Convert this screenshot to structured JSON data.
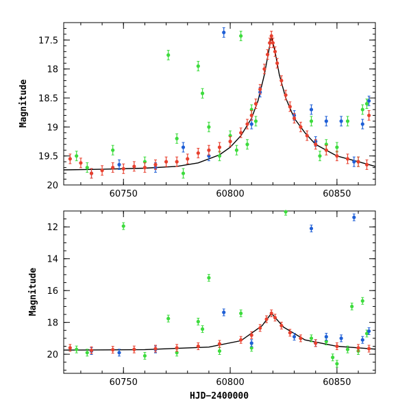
{
  "chart_data": [
    {
      "type": "scatter",
      "title": "",
      "xlabel": "",
      "ylabel": "Magnitude",
      "xlim": [
        60722,
        60868
      ],
      "ylim": [
        20.0,
        17.2
      ],
      "y_inverted": true,
      "x_major_ticks": [
        60750,
        60800,
        60850
      ],
      "x_tick_labels": [
        "60750",
        "60800",
        "60850"
      ],
      "x_minor_step": 10,
      "y_major_ticks": [
        17.5,
        18,
        18.5,
        19,
        19.5,
        20
      ],
      "y_tick_labels": [
        "17.5",
        "18",
        "18.5",
        "19",
        "19.5",
        "20"
      ],
      "y_minor_step": 0.1,
      "grid": false,
      "colors": {
        "blue": "#1f5fd6",
        "green": "#3ddb3d",
        "red": "#e8402e",
        "model": "#000000"
      },
      "model_curve": {
        "x": [
          60722,
          60740,
          60760,
          60775,
          60785,
          60795,
          60800,
          60805,
          60810,
          60813,
          60816,
          60818,
          60819.3,
          60821,
          60823,
          60826,
          60830,
          60835,
          60840,
          60850,
          60860,
          60868
        ],
        "y": [
          19.74,
          19.73,
          19.71,
          19.68,
          19.62,
          19.48,
          19.35,
          19.15,
          18.85,
          18.55,
          18.1,
          17.7,
          17.43,
          17.7,
          18.1,
          18.5,
          18.85,
          19.1,
          19.3,
          19.5,
          19.6,
          19.68
        ]
      },
      "series": [
        {
          "color": "green",
          "points": [
            [
              60728,
              19.5
            ],
            [
              60733,
              19.7
            ],
            [
              60745,
              19.4
            ],
            [
              60760,
              19.6
            ],
            [
              60771,
              17.76
            ],
            [
              60775,
              19.2
            ],
            [
              60778,
              19.8
            ],
            [
              60785,
              17.95
            ],
            [
              60787,
              18.42
            ],
            [
              60790,
              19.0
            ],
            [
              60795,
              19.5
            ],
            [
              60800,
              19.15
            ],
            [
              60803,
              19.4
            ],
            [
              60805,
              17.43
            ],
            [
              60808,
              19.3
            ],
            [
              60810,
              18.7
            ],
            [
              60812,
              18.9
            ],
            [
              60838,
              18.9
            ],
            [
              60842,
              19.5
            ],
            [
              60845,
              19.3
            ],
            [
              60850,
              19.35
            ],
            [
              60855,
              18.9
            ],
            [
              60860,
              19.6
            ],
            [
              60862,
              18.7
            ],
            [
              60864,
              18.6
            ]
          ]
        },
        {
          "color": "blue",
          "points": [
            [
              60735,
              19.8
            ],
            [
              60748,
              19.65
            ],
            [
              60765,
              19.7
            ],
            [
              60778,
              19.35
            ],
            [
              60790,
              19.5
            ],
            [
              60797,
              17.37
            ],
            [
              60810,
              18.95
            ],
            [
              60814,
              18.4
            ],
            [
              60830,
              18.8
            ],
            [
              60838,
              18.7
            ],
            [
              60840,
              19.25
            ],
            [
              60845,
              18.9
            ],
            [
              60852,
              18.9
            ],
            [
              60858,
              19.6
            ],
            [
              60862,
              18.95
            ],
            [
              60865,
              18.55
            ]
          ]
        },
        {
          "color": "red",
          "points": [
            [
              60725,
              19.55
            ],
            [
              60730,
              19.62
            ],
            [
              60735,
              19.8
            ],
            [
              60740,
              19.75
            ],
            [
              60745,
              19.7
            ],
            [
              60750,
              19.72
            ],
            [
              60755,
              19.68
            ],
            [
              60760,
              19.7
            ],
            [
              60765,
              19.65
            ],
            [
              60770,
              19.6
            ],
            [
              60775,
              19.6
            ],
            [
              60780,
              19.55
            ],
            [
              60785,
              19.45
            ],
            [
              60790,
              19.4
            ],
            [
              60795,
              19.35
            ],
            [
              60800,
              19.25
            ],
            [
              60805,
              19.1
            ],
            [
              60808,
              18.95
            ],
            [
              60810,
              18.8
            ],
            [
              60812,
              18.6
            ],
            [
              60814,
              18.35
            ],
            [
              60816,
              18.0
            ],
            [
              60817.5,
              17.75
            ],
            [
              60818.5,
              17.55
            ],
            [
              60819.3,
              17.43
            ],
            [
              60820,
              17.55
            ],
            [
              60821,
              17.7
            ],
            [
              60822,
              17.9
            ],
            [
              60824,
              18.2
            ],
            [
              60826,
              18.45
            ],
            [
              60828,
              18.65
            ],
            [
              60830,
              18.85
            ],
            [
              60833,
              19.0
            ],
            [
              60836,
              19.15
            ],
            [
              60840,
              19.3
            ],
            [
              60845,
              19.4
            ],
            [
              60850,
              19.5
            ],
            [
              60855,
              19.55
            ],
            [
              60860,
              19.6
            ],
            [
              60864,
              19.65
            ],
            [
              60865,
              18.8
            ]
          ]
        }
      ]
    },
    {
      "type": "scatter",
      "title": "",
      "xlabel": "HJD−2400000",
      "ylabel": "Magnitude",
      "xlim": [
        60722,
        60868
      ],
      "ylim": [
        21.2,
        11.0
      ],
      "y_inverted": true,
      "x_major_ticks": [
        60750,
        60800,
        60850
      ],
      "x_tick_labels": [
        "60750",
        "60800",
        "60850"
      ],
      "x_minor_step": 10,
      "y_major_ticks": [
        12,
        14,
        16,
        18,
        20
      ],
      "y_tick_labels": [
        "12",
        "14",
        "16",
        "18",
        "20"
      ],
      "y_minor_step": 0.5,
      "grid": false,
      "model_curve": {
        "x": [
          60722,
          60760,
          60790,
          60805,
          60815,
          60819.3,
          60825,
          60835,
          60850,
          60868
        ],
        "y": [
          19.74,
          19.71,
          19.55,
          19.15,
          18.2,
          17.43,
          18.3,
          19.1,
          19.5,
          19.68
        ]
      },
      "series": [
        {
          "color": "green",
          "points": [
            [
              60728,
              19.7
            ],
            [
              60733,
              19.9
            ],
            [
              60750,
              11.95
            ],
            [
              60760,
              20.1
            ],
            [
              60771,
              17.76
            ],
            [
              60775,
              19.9
            ],
            [
              60785,
              17.95
            ],
            [
              60787,
              18.42
            ],
            [
              60790,
              15.2
            ],
            [
              60795,
              19.8
            ],
            [
              60805,
              17.43
            ],
            [
              60810,
              19.6
            ],
            [
              60826,
              11.05
            ],
            [
              60838,
              19.0
            ],
            [
              60845,
              19.2
            ],
            [
              60848,
              20.2
            ],
            [
              60850,
              20.6
            ],
            [
              60855,
              19.7
            ],
            [
              60857,
              17.0
            ],
            [
              60860,
              19.8
            ],
            [
              60862,
              16.65
            ],
            [
              60864,
              18.7
            ]
          ]
        },
        {
          "color": "blue",
          "points": [
            [
              60735,
              19.8
            ],
            [
              60748,
              19.9
            ],
            [
              60765,
              19.7
            ],
            [
              60797,
              17.37
            ],
            [
              60810,
              19.3
            ],
            [
              60830,
              18.9
            ],
            [
              60838,
              12.1
            ],
            [
              60840,
              19.3
            ],
            [
              60845,
              18.9
            ],
            [
              60852,
              19.0
            ],
            [
              60858,
              11.4
            ],
            [
              60862,
              19.1
            ],
            [
              60865,
              18.55
            ]
          ]
        },
        {
          "color": "red",
          "points": [
            [
              60725,
              19.6
            ],
            [
              60735,
              19.75
            ],
            [
              60745,
              19.72
            ],
            [
              60755,
              19.7
            ],
            [
              60765,
              19.65
            ],
            [
              60775,
              19.6
            ],
            [
              60785,
              19.5
            ],
            [
              60795,
              19.35
            ],
            [
              60805,
              19.1
            ],
            [
              60810,
              18.8
            ],
            [
              60814,
              18.35
            ],
            [
              60817,
              17.8
            ],
            [
              60819.3,
              17.43
            ],
            [
              60821,
              17.7
            ],
            [
              60824,
              18.2
            ],
            [
              60828,
              18.65
            ],
            [
              60833,
              19.0
            ],
            [
              60840,
              19.3
            ],
            [
              60850,
              19.5
            ],
            [
              60860,
              19.6
            ],
            [
              60865,
              19.65
            ]
          ]
        }
      ]
    }
  ]
}
